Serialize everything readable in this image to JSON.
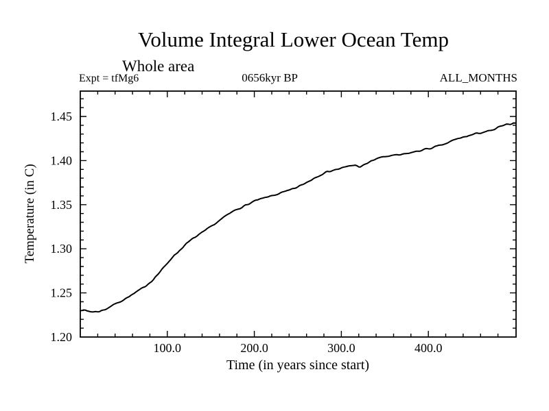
{
  "chart_data": {
    "type": "line",
    "title": "Volume Integral Lower Ocean Temp",
    "subtitle": "Whole area",
    "annotations": {
      "expt": "Expt = tfMg6",
      "time_bp": "0656kyr BP",
      "months": "ALL_MONTHS"
    },
    "xlabel": "Time (in years since start)",
    "ylabel": "Temperature (in C)",
    "xlim": [
      0,
      500.8
    ],
    "ylim": [
      1.2,
      1.4787
    ],
    "grid": false,
    "legend": "none",
    "line_color": "#000000",
    "background_color": "#ffffff",
    "x_ticks": {
      "major": [
        100,
        200,
        300,
        400
      ],
      "major_labels": [
        "100.0",
        "200.0",
        "300.0",
        "400.0"
      ],
      "minor_step": 20
    },
    "y_ticks": {
      "major": [
        1.2,
        1.25,
        1.3,
        1.35,
        1.4,
        1.45
      ],
      "major_labels": [
        "1.20",
        "1.25",
        "1.30",
        "1.35",
        "1.40",
        "1.45"
      ],
      "minor_step": 0.01
    },
    "series": [
      {
        "name": "volume-integral-lower-ocean-temp",
        "x": [
          0,
          8,
          15,
          22,
          30,
          38,
          45,
          52,
          60,
          68,
          75,
          82,
          90,
          98,
          105,
          112,
          120,
          130,
          140,
          150,
          160,
          170,
          180,
          190,
          200,
          210,
          220,
          230,
          240,
          250,
          258,
          265,
          272,
          280,
          288,
          295,
          303,
          310,
          316,
          321,
          327,
          335,
          342,
          350,
          358,
          365,
          372,
          380,
          388,
          395,
          403,
          410,
          418,
          425,
          432,
          440,
          448,
          455,
          462,
          468,
          474,
          480,
          486,
          491,
          496,
          500
        ],
        "y": [
          1.231,
          1.2295,
          1.2285,
          1.229,
          1.232,
          1.2365,
          1.24,
          1.2435,
          1.248,
          1.253,
          1.258,
          1.2635,
          1.272,
          1.281,
          1.29,
          1.296,
          1.304,
          1.312,
          1.318,
          1.325,
          1.332,
          1.339,
          1.345,
          1.349,
          1.354,
          1.357,
          1.36,
          1.363,
          1.366,
          1.37,
          1.374,
          1.378,
          1.382,
          1.386,
          1.3885,
          1.39,
          1.392,
          1.394,
          1.395,
          1.3925,
          1.395,
          1.4,
          1.4025,
          1.4045,
          1.4055,
          1.406,
          1.407,
          1.409,
          1.4105,
          1.4125,
          1.414,
          1.416,
          1.418,
          1.4215,
          1.424,
          1.4265,
          1.4285,
          1.4305,
          1.432,
          1.433,
          1.434,
          1.4375,
          1.4395,
          1.4405,
          1.442,
          1.4435
        ]
      }
    ]
  }
}
